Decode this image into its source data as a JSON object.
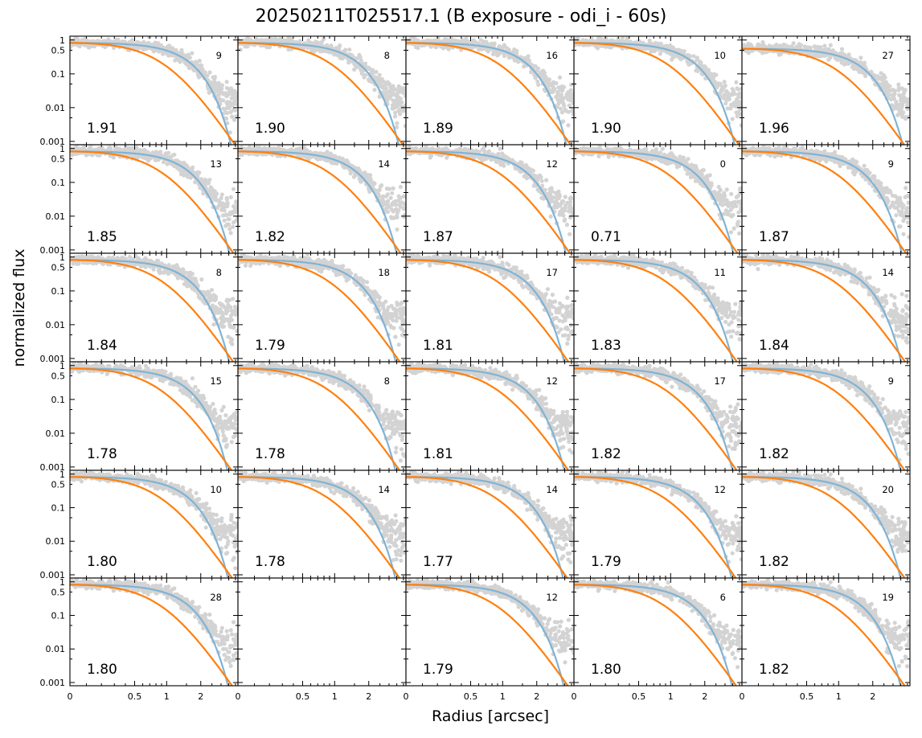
{
  "chart_data": {
    "type": "scatter",
    "title": "20250211T025517.1 (B exposure - odi_i - 60s)",
    "xlabel": "Radius [arcsec]",
    "ylabel": "normalized flux",
    "xscale": "asinh-like (ticks 0, 0.5, 1, 2)",
    "yscale": "log",
    "xlim": [
      0,
      4.2
    ],
    "ylim": [
      0.0008,
      1.3
    ],
    "xticks": [
      "0",
      "0.5",
      "1",
      "2"
    ],
    "yticks": [
      "1",
      "0.5",
      "0.1",
      "0.01",
      "0.001"
    ],
    "grid": false,
    "layout": {
      "rows": 6,
      "cols": 5
    },
    "series_styles": {
      "data_points": "#808080",
      "model_core": "#7fb3d5",
      "model_wings": "#ff7f0e"
    },
    "panels": [
      {
        "fwhm": "1.91",
        "count": "9"
      },
      {
        "fwhm": "1.90",
        "count": "8"
      },
      {
        "fwhm": "1.89",
        "count": "16"
      },
      {
        "fwhm": "1.90",
        "count": "10"
      },
      {
        "fwhm": "1.96",
        "count": "27"
      },
      {
        "fwhm": "1.85",
        "count": "13"
      },
      {
        "fwhm": "1.82",
        "count": "14"
      },
      {
        "fwhm": "1.87",
        "count": "12"
      },
      {
        "fwhm": "0.71",
        "count": "0"
      },
      {
        "fwhm": "1.87",
        "count": "9"
      },
      {
        "fwhm": "1.84",
        "count": "8"
      },
      {
        "fwhm": "1.79",
        "count": "18"
      },
      {
        "fwhm": "1.81",
        "count": "17"
      },
      {
        "fwhm": "1.83",
        "count": "11"
      },
      {
        "fwhm": "1.84",
        "count": "14"
      },
      {
        "fwhm": "1.78",
        "count": "15"
      },
      {
        "fwhm": "1.78",
        "count": "8"
      },
      {
        "fwhm": "1.81",
        "count": "12"
      },
      {
        "fwhm": "1.82",
        "count": "17"
      },
      {
        "fwhm": "1.82",
        "count": "9"
      },
      {
        "fwhm": "1.80",
        "count": "10"
      },
      {
        "fwhm": "1.78",
        "count": "14"
      },
      {
        "fwhm": "1.77",
        "count": "14"
      },
      {
        "fwhm": "1.79",
        "count": "12"
      },
      {
        "fwhm": "1.82",
        "count": "20"
      },
      {
        "fwhm": "1.80",
        "count": "28"
      },
      {
        "fwhm": "",
        "count": "",
        "empty": true
      },
      {
        "fwhm": "1.79",
        "count": "12"
      },
      {
        "fwhm": "1.80",
        "count": "6"
      },
      {
        "fwhm": "1.82",
        "count": "19"
      }
    ]
  }
}
